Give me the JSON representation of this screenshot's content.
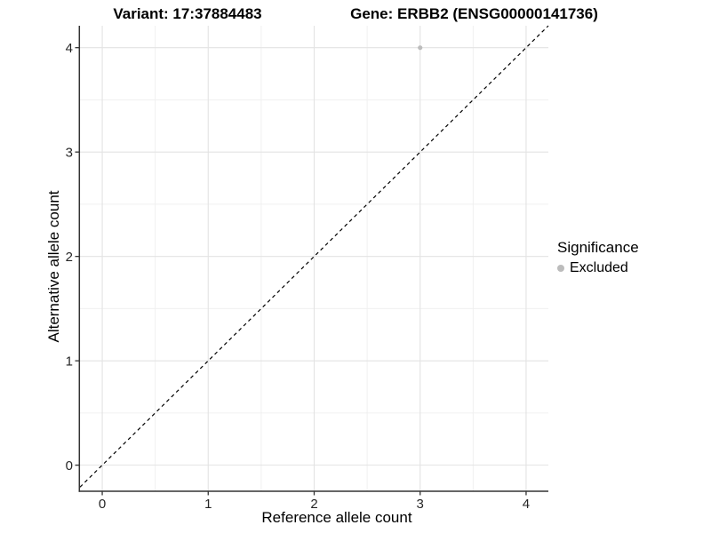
{
  "figure": {
    "title_left": "Variant: 17:37884483",
    "title_right": "Gene: ERBB2 (ENSG00000141736)"
  },
  "legend": {
    "title": "Significance",
    "items": [
      {
        "label": "Excluded",
        "color": "#bcbcbc"
      }
    ]
  },
  "chart_data": {
    "type": "scatter",
    "title": "Variant: 17:37884483  /  Gene: ERBB2 (ENSG00000141736)",
    "xlabel": "Reference allele count",
    "ylabel": "Alternative allele count",
    "xlim": [
      -0.21,
      4.21
    ],
    "ylim": [
      -0.25,
      4.21
    ],
    "x_ticks": [
      0,
      1,
      2,
      3,
      4
    ],
    "y_ticks": [
      0,
      1,
      2,
      3,
      4
    ],
    "grid": true,
    "minor_gridlines": true,
    "legend_position": "right",
    "series": [
      {
        "name": "Excluded",
        "color": "#bcbcbc",
        "points": [
          {
            "x": 3,
            "y": 4
          }
        ]
      }
    ],
    "reference_line": {
      "type": "identity",
      "equation": "y = x",
      "style": "dashed",
      "color": "#000000"
    }
  },
  "colors": {
    "background": "#ffffff",
    "grid_major": "#e3e3e3",
    "grid_minor": "#f0f0f0",
    "axis_line": "#333333",
    "tick_text": "#262626"
  }
}
